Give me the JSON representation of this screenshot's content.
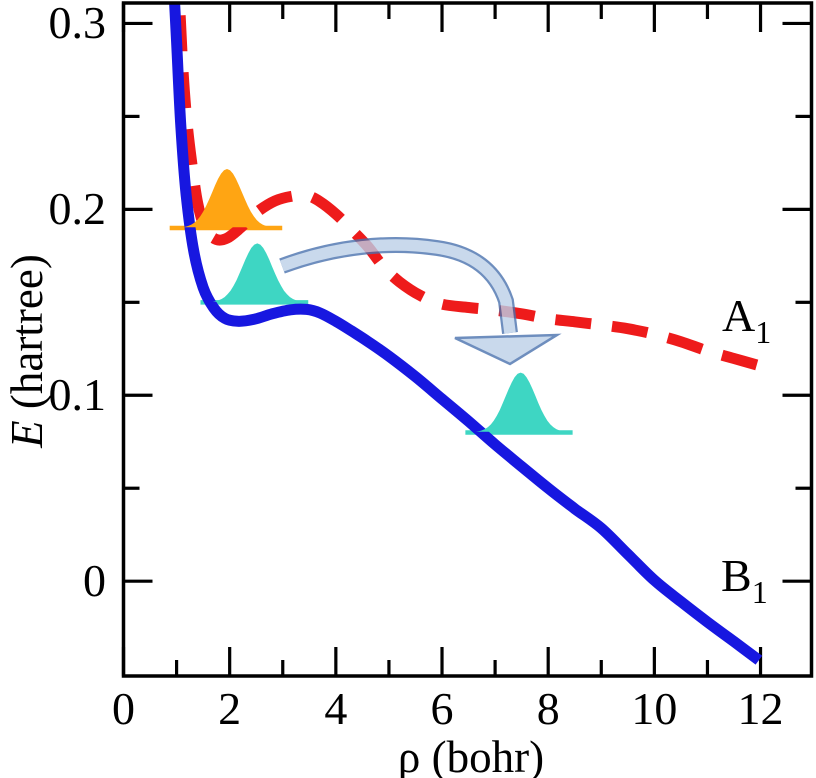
{
  "figure": {
    "background": "#ffffff",
    "labels": {
      "ylabel_var": "E",
      "ylabel_unit": " (hartree)"
    }
  },
  "chart_data": {
    "type": "line",
    "title": "",
    "xlabel": "ρ (bohr)",
    "ylabel": "E (hartree)",
    "xlim": [
      0,
      12.96
    ],
    "ylim": [
      -0.051,
      0.311
    ],
    "grid": false,
    "x_major_ticks": [
      0,
      2,
      4,
      6,
      8,
      10,
      12
    ],
    "x_tick_labels": [
      "0",
      "2",
      "4",
      "6",
      "8",
      "10",
      "12"
    ],
    "x_minor_ticks": [
      1,
      3,
      5,
      7,
      9,
      11
    ],
    "y_major_ticks": [
      0,
      0.1,
      0.2,
      0.3
    ],
    "y_tick_labels": [
      "0",
      "0.1",
      "0.2",
      "0.3"
    ],
    "y_minor_ticks": [
      0.05,
      0.15,
      0.25
    ],
    "axis_color": "#000000",
    "series": [
      {
        "name": "A1",
        "label_main": "A",
        "label_sub": "1",
        "line_style": "dashed",
        "color": "#ee1b1b",
        "points": [
          [
            1.02,
            0.335
          ],
          [
            1.1,
            0.285
          ],
          [
            1.18,
            0.252
          ],
          [
            1.28,
            0.226
          ],
          [
            1.4,
            0.203
          ],
          [
            1.55,
            0.189
          ],
          [
            1.75,
            0.1838
          ],
          [
            1.95,
            0.1845
          ],
          [
            2.2,
            0.19
          ],
          [
            2.5,
            0.1982
          ],
          [
            2.85,
            0.2045
          ],
          [
            3.2,
            0.2072
          ],
          [
            3.45,
            0.2075
          ],
          [
            3.7,
            0.2042
          ],
          [
            4.0,
            0.1975
          ],
          [
            4.3,
            0.189
          ],
          [
            4.6,
            0.18
          ],
          [
            4.9,
            0.169
          ],
          [
            5.2,
            0.161
          ],
          [
            5.6,
            0.1535
          ],
          [
            6.0,
            0.149
          ],
          [
            6.5,
            0.1472
          ],
          [
            7.0,
            0.1458
          ],
          [
            7.5,
            0.1438
          ],
          [
            8.0,
            0.1412
          ],
          [
            8.5,
            0.1395
          ],
          [
            9.0,
            0.1378
          ],
          [
            9.5,
            0.1358
          ],
          [
            10.0,
            0.1328
          ],
          [
            10.5,
            0.1288
          ],
          [
            11.0,
            0.1238
          ],
          [
            11.5,
            0.1198
          ],
          [
            11.97,
            0.116
          ]
        ]
      },
      {
        "name": "B1",
        "label_main": "B",
        "label_sub": "1",
        "line_style": "solid",
        "color": "#1717e0",
        "points": [
          [
            0.92,
            0.335
          ],
          [
            1.0,
            0.29
          ],
          [
            1.08,
            0.245
          ],
          [
            1.18,
            0.208
          ],
          [
            1.32,
            0.178
          ],
          [
            1.5,
            0.158
          ],
          [
            1.7,
            0.147
          ],
          [
            1.9,
            0.1415
          ],
          [
            2.15,
            0.1398
          ],
          [
            2.45,
            0.1408
          ],
          [
            2.8,
            0.1438
          ],
          [
            3.15,
            0.146
          ],
          [
            3.45,
            0.1462
          ],
          [
            3.7,
            0.1443
          ],
          [
            4.0,
            0.1398
          ],
          [
            4.3,
            0.1345
          ],
          [
            4.6,
            0.129
          ],
          [
            5.0,
            0.121
          ],
          [
            5.5,
            0.11
          ],
          [
            6.0,
            0.098
          ],
          [
            6.5,
            0.086
          ],
          [
            7.0,
            0.0735
          ],
          [
            7.5,
            0.0617
          ],
          [
            8.0,
            0.05
          ],
          [
            8.5,
            0.039
          ],
          [
            9.0,
            0.0285
          ],
          [
            9.5,
            0.0145
          ],
          [
            10.0,
            0.0005
          ],
          [
            10.5,
            -0.011
          ],
          [
            11.0,
            -0.022
          ],
          [
            11.5,
            -0.0325
          ],
          [
            11.97,
            -0.0425
          ]
        ]
      }
    ],
    "wavepackets": [
      {
        "name": "initial-wavepacket-upper",
        "color": "#ffa513",
        "baseline_E": 0.19,
        "line_rho_span": [
          0.87,
          2.99
        ],
        "center_rho": 1.95,
        "sigma_rho": 0.28,
        "height_E": 0.0317
      },
      {
        "name": "initial-wavepacket-lower",
        "color": "#3ed6c3",
        "baseline_E": 0.15,
        "line_rho_span": [
          1.45,
          3.48
        ],
        "center_rho": 2.52,
        "sigma_rho": 0.28,
        "height_E": 0.0317
      },
      {
        "name": "final-wavepacket",
        "color": "#3ed6c3",
        "baseline_E": 0.08,
        "line_rho_span": [
          6.44,
          8.46
        ],
        "center_rho": 7.48,
        "sigma_rho": 0.28,
        "height_E": 0.0322
      }
    ],
    "arrow": {
      "name": "wavepacket-transfer-arrow",
      "fill": "#bcd0e8",
      "stroke": "#4b72ae",
      "opacity": 0.8,
      "from": {
        "rho": 2.96,
        "E": 0.17
      },
      "to": {
        "rho": 7.27,
        "E": 0.117
      }
    }
  }
}
